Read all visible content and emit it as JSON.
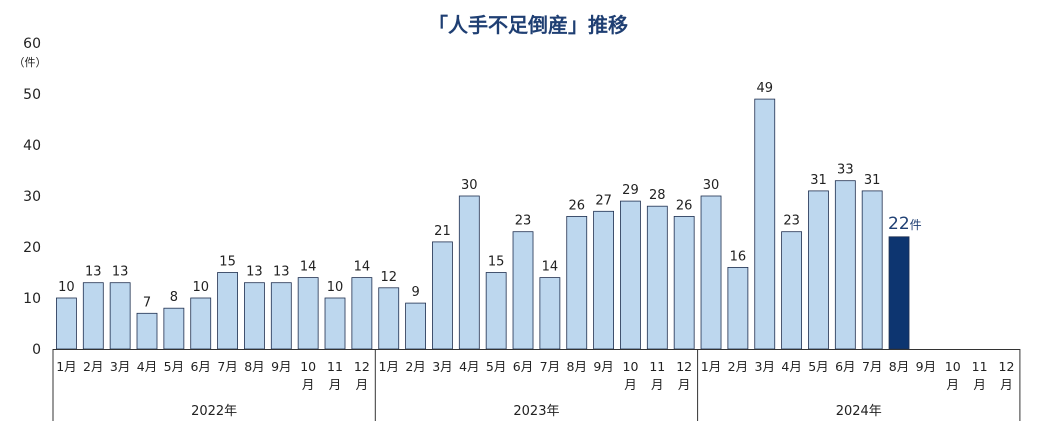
{
  "chart_data": {
    "type": "bar",
    "title": "「人手不足倒産」推移",
    "y_unit": "（件）",
    "ylim": [
      0,
      60
    ],
    "yticks": [
      0,
      10,
      20,
      30,
      40,
      50,
      60
    ],
    "grid": false,
    "groups": [
      {
        "year": "2022年",
        "months": [
          "1月",
          "2月",
          "3月",
          "4月",
          "5月",
          "6月",
          "7月",
          "8月",
          "9月",
          "10月",
          "11月",
          "12月"
        ],
        "values": [
          10,
          13,
          13,
          7,
          8,
          10,
          15,
          13,
          13,
          14,
          10,
          14
        ]
      },
      {
        "year": "2023年",
        "months": [
          "1月",
          "2月",
          "3月",
          "4月",
          "5月",
          "6月",
          "7月",
          "8月",
          "9月",
          "10月",
          "11月",
          "12月"
        ],
        "values": [
          12,
          9,
          21,
          30,
          15,
          23,
          14,
          26,
          27,
          29,
          28,
          26
        ]
      },
      {
        "year": "2024年",
        "months": [
          "1月",
          "2月",
          "3月",
          "4月",
          "5月",
          "6月",
          "7月",
          "8月",
          "9月",
          "10月",
          "11月",
          "12月"
        ],
        "values": [
          30,
          16,
          49,
          23,
          31,
          33,
          31,
          22,
          null,
          null,
          null,
          null
        ]
      }
    ],
    "highlight": {
      "group": 2,
      "index": 7,
      "label_suffix": "件"
    },
    "colors": {
      "bar": "#bdd7ee",
      "bar_stroke": "#1f2f4f",
      "highlight": "#0d3570",
      "title": "#1f3f73"
    }
  }
}
